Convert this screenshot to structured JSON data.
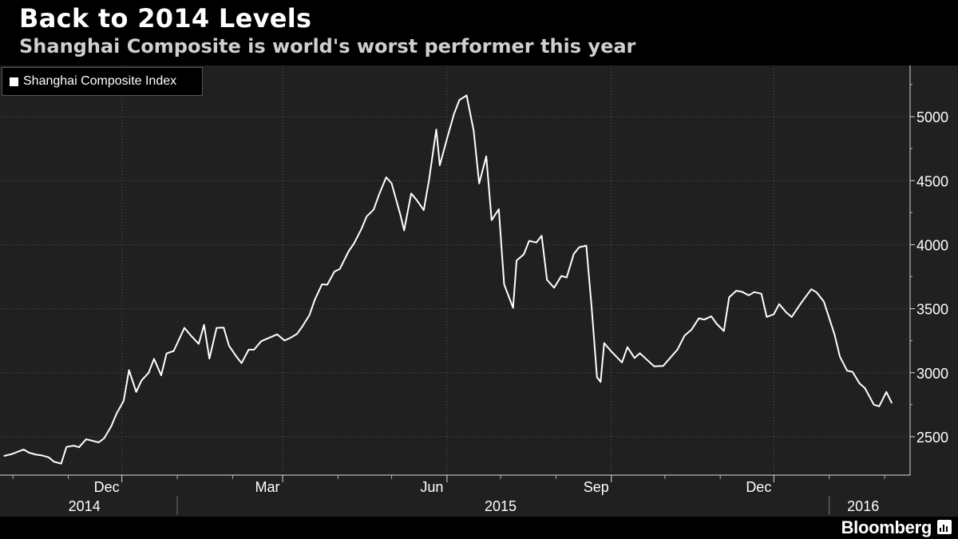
{
  "header": {
    "title": "Back to 2014 Levels",
    "subtitle": "Shanghai Composite is world's worst performer this year"
  },
  "legend": {
    "label": "Shanghai Composite Index"
  },
  "brand": {
    "name": "Bloomberg",
    "icon": "bloomberg-chart-icon"
  },
  "colors": {
    "background": "#000000",
    "plot": "#202020",
    "line": "#ffffff",
    "grid": "#5a5a5a"
  },
  "chart_data": {
    "type": "line",
    "title": "Back to 2014 Levels",
    "subtitle": "Shanghai Composite is world's worst performer this year",
    "xlabel": "",
    "ylabel": "",
    "ylim": [
      2200,
      5400
    ],
    "xlim": [
      "2014-09-26",
      "2016-02-05"
    ],
    "y_ticks": [
      2500,
      3000,
      3500,
      4000,
      4500,
      5000
    ],
    "x_tick_labels": [
      {
        "date": "2014-12-01",
        "label": "Dec"
      },
      {
        "date": "2015-03-01",
        "label": "Mar"
      },
      {
        "date": "2015-06-01",
        "label": "Jun"
      },
      {
        "date": "2015-09-01",
        "label": "Sep"
      },
      {
        "date": "2015-12-01",
        "label": "Dec"
      }
    ],
    "minor_ticks": [
      "2014-10-01",
      "2014-11-01",
      "2015-01-01",
      "2015-02-01",
      "2015-04-01",
      "2015-05-01",
      "2015-07-01",
      "2015-08-01",
      "2015-10-01",
      "2015-11-01",
      "2016-01-01",
      "2016-02-01"
    ],
    "year_labels": [
      {
        "label": "2014",
        "date": "2014-11-10"
      },
      {
        "label": "2015",
        "date": "2015-07-01"
      },
      {
        "label": "2016",
        "date": "2016-01-20"
      }
    ],
    "year_dividers": [
      "2015-01-01",
      "2016-01-01"
    ],
    "grid": true,
    "legend_position": "top-left",
    "series": [
      {
        "name": "Shanghai Composite Index",
        "x": [
          "2014-09-26",
          "2014-09-30",
          "2014-10-07",
          "2014-10-10",
          "2014-10-14",
          "2014-10-17",
          "2014-10-21",
          "2014-10-24",
          "2014-10-28",
          "2014-10-31",
          "2014-11-04",
          "2014-11-07",
          "2014-11-11",
          "2014-11-14",
          "2014-11-18",
          "2014-11-21",
          "2014-11-25",
          "2014-11-28",
          "2014-12-02",
          "2014-12-05",
          "2014-12-09",
          "2014-12-12",
          "2014-12-16",
          "2014-12-19",
          "2014-12-23",
          "2014-12-26",
          "2014-12-30",
          "2015-01-05",
          "2015-01-09",
          "2015-01-13",
          "2015-01-16",
          "2015-01-19",
          "2015-01-23",
          "2015-01-27",
          "2015-01-30",
          "2015-02-03",
          "2015-02-06",
          "2015-02-10",
          "2015-02-13",
          "2015-02-17",
          "2015-02-26",
          "2015-03-02",
          "2015-03-05",
          "2015-03-09",
          "2015-03-12",
          "2015-03-16",
          "2015-03-19",
          "2015-03-23",
          "2015-03-26",
          "2015-03-30",
          "2015-04-02",
          "2015-04-07",
          "2015-04-10",
          "2015-04-14",
          "2015-04-17",
          "2015-04-21",
          "2015-04-24",
          "2015-04-28",
          "2015-05-01",
          "2015-05-06",
          "2015-05-08",
          "2015-05-12",
          "2015-05-15",
          "2015-05-19",
          "2015-05-22",
          "2015-05-26",
          "2015-05-28",
          "2015-06-01",
          "2015-06-05",
          "2015-06-08",
          "2015-06-12",
          "2015-06-16",
          "2015-06-19",
          "2015-06-23",
          "2015-06-26",
          "2015-06-30",
          "2015-07-03",
          "2015-07-08",
          "2015-07-10",
          "2015-07-14",
          "2015-07-17",
          "2015-07-21",
          "2015-07-24",
          "2015-07-27",
          "2015-07-31",
          "2015-08-04",
          "2015-08-07",
          "2015-08-11",
          "2015-08-14",
          "2015-08-18",
          "2015-08-21",
          "2015-08-24",
          "2015-08-26",
          "2015-08-28",
          "2015-09-01",
          "2015-09-07",
          "2015-09-10",
          "2015-09-14",
          "2015-09-17",
          "2015-09-21",
          "2015-09-25",
          "2015-09-30",
          "2015-10-08",
          "2015-10-12",
          "2015-10-16",
          "2015-10-20",
          "2015-10-23",
          "2015-10-27",
          "2015-10-30",
          "2015-11-03",
          "2015-11-06",
          "2015-11-10",
          "2015-11-13",
          "2015-11-17",
          "2015-11-20",
          "2015-11-24",
          "2015-11-27",
          "2015-12-01",
          "2015-12-04",
          "2015-12-08",
          "2015-12-11",
          "2015-12-15",
          "2015-12-18",
          "2015-12-22",
          "2015-12-25",
          "2015-12-29",
          "2016-01-04",
          "2016-01-07",
          "2016-01-11",
          "2016-01-14",
          "2016-01-18",
          "2016-01-21",
          "2016-01-26",
          "2016-01-29",
          "2016-02-02",
          "2016-02-05"
        ],
        "y": [
          2350,
          2363,
          2400,
          2375,
          2360,
          2355,
          2339,
          2305,
          2290,
          2420,
          2430,
          2418,
          2480,
          2470,
          2456,
          2487,
          2580,
          2680,
          2780,
          3020,
          2850,
          2940,
          3000,
          3108,
          2980,
          3150,
          3170,
          3350,
          3285,
          3225,
          3374,
          3110,
          3350,
          3352,
          3210,
          3128,
          3075,
          3180,
          3180,
          3246,
          3300,
          3252,
          3270,
          3302,
          3360,
          3450,
          3570,
          3690,
          3688,
          3790,
          3810,
          3950,
          4010,
          4120,
          4220,
          4275,
          4393,
          4527,
          4480,
          4229,
          4112,
          4400,
          4350,
          4270,
          4510,
          4900,
          4620,
          4828,
          5023,
          5131,
          5166,
          4887,
          4478,
          4690,
          4192,
          4277,
          3690,
          3507,
          3877,
          3925,
          4030,
          4017,
          4070,
          3725,
          3664,
          3756,
          3744,
          3928,
          3980,
          3993,
          3510,
          2965,
          2928,
          3232,
          3166,
          3080,
          3200,
          3115,
          3152,
          3100,
          3050,
          3053,
          3180,
          3290,
          3338,
          3425,
          3415,
          3440,
          3382,
          3325,
          3590,
          3640,
          3633,
          3605,
          3630,
          3617,
          3436,
          3457,
          3536,
          3470,
          3435,
          3520,
          3578,
          3652,
          3627,
          3555,
          3297,
          3125,
          3016,
          3007,
          2916,
          2880,
          2750,
          2738,
          2850,
          2763
        ]
      }
    ]
  }
}
